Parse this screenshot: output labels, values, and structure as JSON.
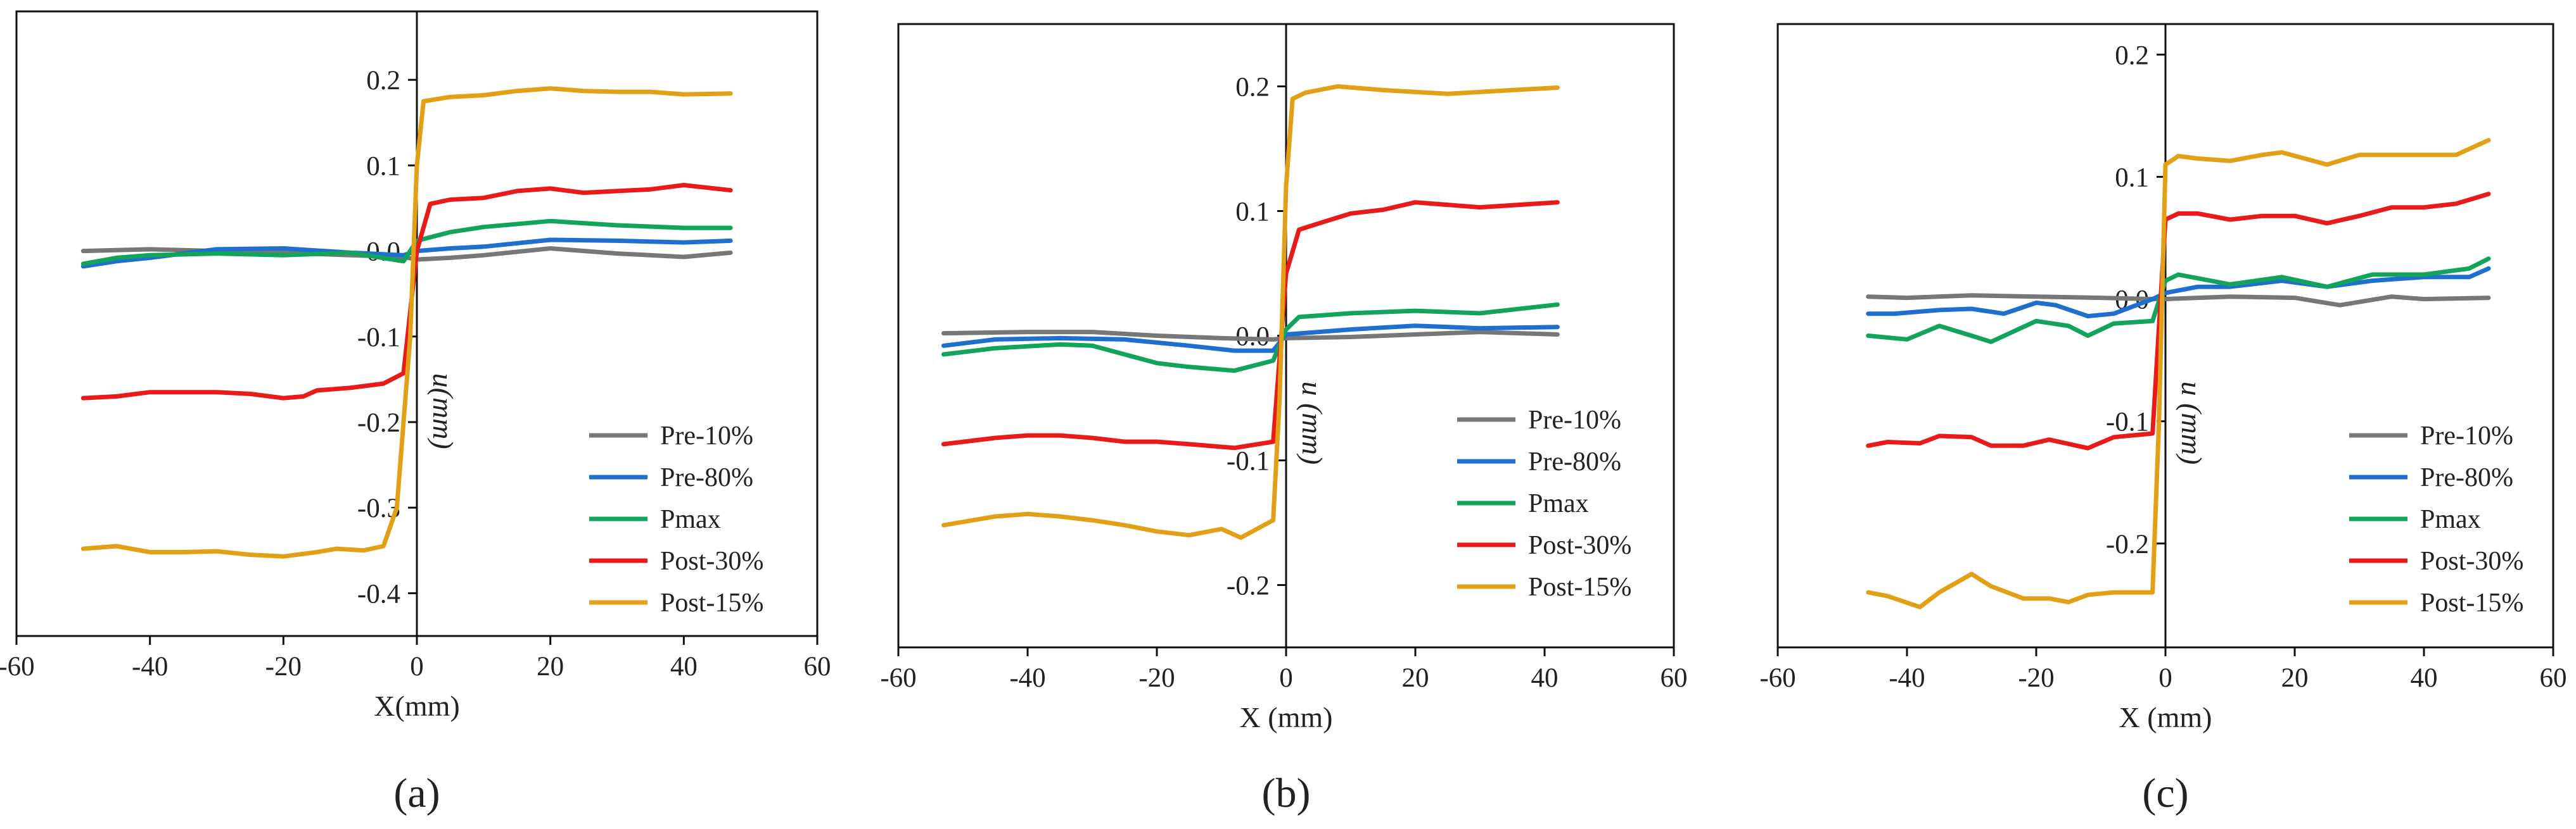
{
  "chart_data": [
    {
      "type": "line",
      "panel_label": "(a)",
      "xlabel": "X(mm)",
      "ylabel": "u(mm)",
      "xlim": [
        -60,
        60
      ],
      "ylim": [
        -0.45,
        0.28
      ],
      "xticks": [
        -60,
        -40,
        -20,
        0,
        20,
        40,
        60
      ],
      "xtick_labels": [
        "-60",
        "-40",
        "-20",
        "0",
        "20",
        "40",
        "60"
      ],
      "yticks": [
        0.2,
        0.1,
        0.0,
        -0.1,
        -0.2,
        -0.3,
        -0.4
      ],
      "ytick_labels": [
        "0.2",
        "0.1",
        "0.0",
        "-0.1",
        "-0.2",
        "-0.3",
        "-0.4"
      ],
      "legend": [
        "Pre-10%",
        "Pre-80%",
        "Pmax",
        "Post-30%",
        "Post-15%"
      ],
      "series": [
        {
          "name": "Pre-10%",
          "color": "#777777",
          "x": [
            -50,
            -40,
            -30,
            -20,
            -10,
            -2,
            0,
            5,
            10,
            20,
            30,
            40,
            47
          ],
          "y": [
            0.0,
            0.002,
            0.0,
            -0.002,
            -0.005,
            -0.007,
            -0.01,
            -0.008,
            -0.005,
            0.003,
            -0.003,
            -0.007,
            -0.002
          ]
        },
        {
          "name": "Pre-80%",
          "color": "#1f6fd1",
          "x": [
            -50,
            -45,
            -40,
            -30,
            -20,
            -10,
            -2,
            0,
            5,
            10,
            20,
            30,
            40,
            47
          ],
          "y": [
            -0.018,
            -0.012,
            -0.008,
            0.002,
            0.003,
            -0.002,
            -0.005,
            0.0,
            0.003,
            0.005,
            0.013,
            0.012,
            0.01,
            0.012
          ]
        },
        {
          "name": "Pmax",
          "color": "#12a45a",
          "x": [
            -50,
            -45,
            -40,
            -30,
            -20,
            -10,
            -2,
            0,
            5,
            10,
            20,
            30,
            40,
            47
          ],
          "y": [
            -0.015,
            -0.008,
            -0.005,
            -0.003,
            -0.005,
            -0.002,
            -0.012,
            0.012,
            0.022,
            0.028,
            0.035,
            0.03,
            0.027,
            0.027
          ]
        },
        {
          "name": "Post-30%",
          "color": "#e81a1a",
          "x": [
            -50,
            -45,
            -40,
            -35,
            -30,
            -25,
            -20,
            -17,
            -15,
            -10,
            -5,
            -2,
            0,
            2,
            5,
            10,
            15,
            20,
            25,
            30,
            35,
            40,
            47
          ],
          "y": [
            -0.172,
            -0.17,
            -0.165,
            -0.165,
            -0.165,
            -0.167,
            -0.172,
            -0.17,
            -0.163,
            -0.16,
            -0.155,
            -0.143,
            0.0,
            0.055,
            0.06,
            0.062,
            0.07,
            0.073,
            0.068,
            0.07,
            0.072,
            0.077,
            0.071
          ]
        },
        {
          "name": "Post-15%",
          "color": "#e2a017",
          "x": [
            -50,
            -45,
            -40,
            -35,
            -30,
            -25,
            -20,
            -15,
            -12,
            -8,
            -5,
            -3,
            -1,
            0,
            1,
            5,
            10,
            15,
            20,
            25,
            30,
            35,
            40,
            47
          ],
          "y": [
            -0.348,
            -0.345,
            -0.352,
            -0.352,
            -0.351,
            -0.355,
            -0.357,
            -0.352,
            -0.348,
            -0.35,
            -0.345,
            -0.3,
            -0.1,
            0.1,
            0.175,
            0.18,
            0.182,
            0.187,
            0.19,
            0.187,
            0.186,
            0.186,
            0.183,
            0.184
          ]
        }
      ]
    },
    {
      "type": "line",
      "panel_label": "(b)",
      "xlabel": "X (mm)",
      "ylabel": "u (mm)",
      "xlim": [
        -60,
        60
      ],
      "ylim": [
        -0.25,
        0.25
      ],
      "xticks": [
        -60,
        -40,
        -20,
        0,
        20,
        40,
        60
      ],
      "xtick_labels": [
        "-60",
        "-40",
        "-20",
        "0",
        "20",
        "40",
        "60"
      ],
      "yticks": [
        0.2,
        0.1,
        0.0,
        -0.1,
        -0.2
      ],
      "ytick_labels": [
        "0.2",
        "0.1",
        "0.0",
        "-0.1",
        "-0.2"
      ],
      "legend": [
        "Pre-10%",
        "Pre-80%",
        "Pmax",
        "Post-30%",
        "Post-15%"
      ],
      "series": [
        {
          "name": "Pre-10%",
          "color": "#777777",
          "x": [
            -53,
            -40,
            -30,
            -20,
            -10,
            -2,
            0,
            10,
            20,
            30,
            42
          ],
          "y": [
            0.002,
            0.003,
            0.003,
            0.0,
            -0.002,
            -0.003,
            -0.002,
            -0.001,
            0.001,
            0.003,
            0.001
          ]
        },
        {
          "name": "Pre-80%",
          "color": "#1f6fd1",
          "x": [
            -53,
            -45,
            -35,
            -25,
            -15,
            -8,
            -2,
            0,
            5,
            10,
            20,
            30,
            42
          ],
          "y": [
            -0.008,
            -0.003,
            -0.002,
            -0.003,
            -0.008,
            -0.012,
            -0.012,
            0.001,
            0.003,
            0.005,
            0.008,
            0.006,
            0.007
          ]
        },
        {
          "name": "Pmax",
          "color": "#12a45a",
          "x": [
            -53,
            -45,
            -35,
            -30,
            -25,
            -20,
            -15,
            -8,
            -2,
            0,
            2,
            10,
            20,
            30,
            42
          ],
          "y": [
            -0.015,
            -0.01,
            -0.007,
            -0.008,
            -0.015,
            -0.022,
            -0.025,
            -0.028,
            -0.02,
            0.005,
            0.015,
            0.018,
            0.02,
            0.018,
            0.025
          ]
        },
        {
          "name": "Post-30%",
          "color": "#e81a1a",
          "x": [
            -53,
            -45,
            -40,
            -35,
            -30,
            -25,
            -20,
            -15,
            -8,
            -2,
            0,
            2,
            5,
            10,
            15,
            20,
            30,
            42
          ],
          "y": [
            -0.087,
            -0.082,
            -0.08,
            -0.08,
            -0.082,
            -0.085,
            -0.085,
            -0.087,
            -0.09,
            -0.085,
            0.05,
            0.085,
            0.09,
            0.098,
            0.101,
            0.107,
            0.103,
            0.107
          ]
        },
        {
          "name": "Post-15%",
          "color": "#e2a017",
          "x": [
            -53,
            -45,
            -40,
            -35,
            -30,
            -25,
            -20,
            -15,
            -10,
            -7,
            -2,
            -1,
            0,
            1,
            3,
            8,
            15,
            25,
            35,
            42
          ],
          "y": [
            -0.152,
            -0.145,
            -0.143,
            -0.145,
            -0.148,
            -0.152,
            -0.157,
            -0.16,
            -0.155,
            -0.162,
            -0.148,
            -0.05,
            0.12,
            0.19,
            0.195,
            0.2,
            0.197,
            0.194,
            0.197,
            0.199
          ]
        }
      ]
    },
    {
      "type": "line",
      "panel_label": "(c)",
      "xlabel": "X (mm)",
      "ylabel": "u (mm)",
      "xlim": [
        -60,
        60
      ],
      "ylim": [
        -0.285,
        0.225
      ],
      "xticks": [
        -60,
        -40,
        -20,
        0,
        20,
        40,
        60
      ],
      "xtick_labels": [
        "-60",
        "-40",
        "-20",
        "0",
        "20",
        "40",
        "60"
      ],
      "yticks": [
        0.2,
        0.1,
        0.0,
        -0.1,
        -0.2
      ],
      "ytick_labels": [
        "0.2",
        "0.1",
        "0.0",
        "-0.1",
        "-0.2"
      ],
      "legend": [
        "Pre-10%",
        "Pre-80%",
        "Pmax",
        "Post-30%",
        "Post-15%"
      ],
      "series": [
        {
          "name": "Pre-10%",
          "color": "#777777",
          "x": [
            -46,
            -40,
            -30,
            -20,
            -10,
            -2,
            0,
            10,
            20,
            27,
            35,
            40,
            50
          ],
          "y": [
            0.002,
            0.001,
            0.003,
            0.002,
            0.001,
            0.0,
            0.0,
            0.002,
            0.001,
            -0.005,
            0.002,
            0.0,
            0.001
          ]
        },
        {
          "name": "Pre-80%",
          "color": "#1f6fd1",
          "x": [
            -46,
            -42,
            -35,
            -30,
            -25,
            -20,
            -17,
            -12,
            -8,
            -2,
            0,
            5,
            10,
            18,
            25,
            32,
            40,
            47,
            50
          ],
          "y": [
            -0.012,
            -0.012,
            -0.009,
            -0.008,
            -0.012,
            -0.003,
            -0.005,
            -0.014,
            -0.012,
            0.0,
            0.005,
            0.01,
            0.01,
            0.015,
            0.01,
            0.015,
            0.018,
            0.018,
            0.025
          ]
        },
        {
          "name": "Pmax",
          "color": "#12a45a",
          "x": [
            -46,
            -40,
            -35,
            -30,
            -27,
            -20,
            -15,
            -12,
            -8,
            -2,
            0,
            2,
            10,
            18,
            25,
            32,
            40,
            47,
            50
          ],
          "y": [
            -0.03,
            -0.033,
            -0.022,
            -0.03,
            -0.035,
            -0.018,
            -0.022,
            -0.03,
            -0.02,
            -0.018,
            0.015,
            0.02,
            0.012,
            0.018,
            0.01,
            0.02,
            0.02,
            0.025,
            0.033
          ]
        },
        {
          "name": "Post-30%",
          "color": "#e81a1a",
          "x": [
            -46,
            -43,
            -38,
            -35,
            -30,
            -27,
            -22,
            -18,
            -12,
            -8,
            -2,
            0,
            2,
            5,
            10,
            15,
            20,
            25,
            30,
            35,
            40,
            45,
            50
          ],
          "y": [
            -0.12,
            -0.117,
            -0.118,
            -0.112,
            -0.113,
            -0.12,
            -0.12,
            -0.115,
            -0.122,
            -0.113,
            -0.11,
            0.065,
            0.07,
            0.07,
            0.065,
            0.068,
            0.068,
            0.062,
            0.068,
            0.075,
            0.075,
            0.078,
            0.086
          ]
        },
        {
          "name": "Post-15%",
          "color": "#e2a017",
          "x": [
            -46,
            -43,
            -38,
            -35,
            -30,
            -27,
            -22,
            -18,
            -15,
            -12,
            -8,
            -2,
            -1,
            0,
            2,
            5,
            10,
            15,
            18,
            25,
            30,
            40,
            45,
            50
          ],
          "y": [
            -0.24,
            -0.243,
            -0.252,
            -0.24,
            -0.225,
            -0.235,
            -0.245,
            -0.245,
            -0.248,
            -0.242,
            -0.24,
            -0.24,
            -0.1,
            0.11,
            0.117,
            0.115,
            0.113,
            0.118,
            0.12,
            0.11,
            0.118,
            0.118,
            0.118,
            0.13
          ]
        }
      ]
    }
  ]
}
